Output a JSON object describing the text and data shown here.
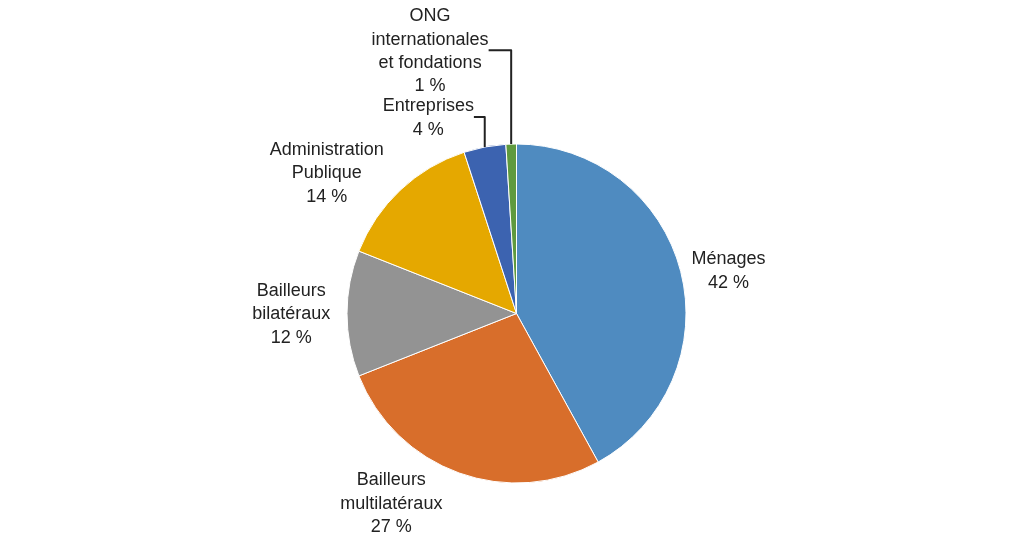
{
  "chart_data": {
    "type": "pie",
    "categories": [
      "Ménages",
      "Bailleurs multilatéraux",
      "Bailleurs bilatéraux",
      "Administration Publique",
      "Entreprises",
      "ONG internationales et fondations"
    ],
    "values": [
      42,
      27,
      12,
      14,
      4,
      1
    ],
    "value_labels": [
      "42 %",
      "27 %",
      "12 %",
      "14 %",
      "4 %",
      "1 %"
    ],
    "colors": [
      "#4f8bc0",
      "#d86e2b",
      "#939393",
      "#e5a800",
      "#3c63b0",
      "#5f9a3e"
    ],
    "legend": false
  }
}
